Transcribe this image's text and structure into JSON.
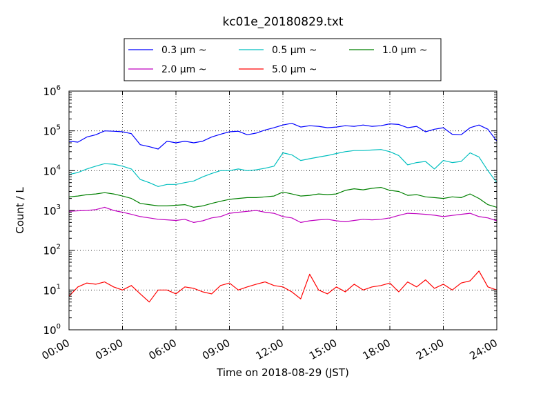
{
  "chart_data": {
    "type": "line",
    "title": "kc01e_20180829.txt",
    "xlabel": "Time on 2018-08-29 (JST)",
    "ylabel": "Count / L",
    "yscale": "log",
    "ylim": [
      1,
      1000000
    ],
    "xlim": [
      "00:00",
      "24:00"
    ],
    "x_ticks": [
      "00:00",
      "03:00",
      "06:00",
      "09:00",
      "12:00",
      "15:00",
      "18:00",
      "21:00",
      "24:00"
    ],
    "y_ticks": [
      {
        "base": "10",
        "exp": "0",
        "value": 1
      },
      {
        "base": "10",
        "exp": "1",
        "value": 10
      },
      {
        "base": "10",
        "exp": "2",
        "value": 100
      },
      {
        "base": "10",
        "exp": "3",
        "value": 1000
      },
      {
        "base": "10",
        "exp": "4",
        "value": 10000
      },
      {
        "base": "10",
        "exp": "5",
        "value": 100000
      },
      {
        "base": "10",
        "exp": "6",
        "value": 1000000
      }
    ],
    "grid": true,
    "legend_position": "top-center (above plot)",
    "x_units": "hours",
    "x": [
      0,
      0.5,
      1,
      1.5,
      2,
      2.5,
      3,
      3.5,
      4,
      4.5,
      5,
      5.5,
      6,
      6.5,
      7,
      7.5,
      8,
      8.5,
      9,
      9.5,
      10,
      10.5,
      11,
      11.5,
      12,
      12.5,
      13,
      13.5,
      14,
      14.5,
      15,
      15.5,
      16,
      16.5,
      17,
      17.5,
      18,
      18.5,
      19,
      19.5,
      20,
      20.5,
      21,
      21.5,
      22,
      22.5,
      23,
      23.5,
      24
    ],
    "series": [
      {
        "name": "0.3",
        "unit": "μm ~",
        "color": "#0000ff",
        "values": [
          55000,
          52000,
          70000,
          80000,
          100000,
          98000,
          95000,
          85000,
          45000,
          40000,
          35000,
          55000,
          50000,
          55000,
          50000,
          55000,
          70000,
          82000,
          95000,
          98000,
          80000,
          88000,
          105000,
          120000,
          140000,
          155000,
          125000,
          135000,
          130000,
          120000,
          125000,
          135000,
          130000,
          140000,
          130000,
          135000,
          150000,
          145000,
          120000,
          130000,
          95000,
          110000,
          120000,
          82000,
          80000,
          120000,
          140000,
          110000,
          55000
        ]
      },
      {
        "name": "0.5",
        "unit": "μm ~",
        "color": "#00bfbf",
        "values": [
          8000,
          9000,
          11000,
          13000,
          15000,
          14500,
          13000,
          11000,
          6000,
          5000,
          4000,
          4500,
          4500,
          5000,
          5500,
          7000,
          8500,
          10000,
          10000,
          11000,
          10000,
          10500,
          11500,
          13000,
          28000,
          25000,
          18000,
          20000,
          22000,
          24000,
          27000,
          30000,
          32000,
          32000,
          33000,
          34000,
          30000,
          24000,
          14000,
          16000,
          17000,
          11000,
          18000,
          16000,
          17000,
          28000,
          22000,
          10000,
          5000
        ]
      },
      {
        "name": "1.0",
        "unit": "μm ~",
        "color": "#008000",
        "values": [
          2200,
          2300,
          2500,
          2600,
          2800,
          2600,
          2300,
          2000,
          1500,
          1400,
          1300,
          1300,
          1350,
          1400,
          1200,
          1300,
          1500,
          1700,
          1900,
          2000,
          2100,
          2100,
          2200,
          2300,
          2900,
          2600,
          2300,
          2400,
          2600,
          2500,
          2600,
          3200,
          3500,
          3300,
          3600,
          3800,
          3200,
          3000,
          2400,
          2500,
          2200,
          2100,
          2000,
          2200,
          2100,
          2600,
          2000,
          1400,
          1200
        ]
      },
      {
        "name": "2.0",
        "unit": "μm ~",
        "color": "#bf00bf",
        "values": [
          950,
          980,
          1000,
          1050,
          1200,
          1000,
          900,
          800,
          700,
          650,
          600,
          580,
          560,
          600,
          500,
          550,
          650,
          700,
          850,
          900,
          950,
          1000,
          900,
          850,
          700,
          650,
          500,
          550,
          580,
          600,
          550,
          520,
          560,
          600,
          580,
          600,
          650,
          750,
          850,
          830,
          800,
          760,
          700,
          750,
          800,
          850,
          700,
          650,
          550
        ]
      },
      {
        "name": "5.0",
        "unit": "μm ~",
        "color": "#ff0000",
        "values": [
          7,
          12,
          15,
          14,
          16,
          12,
          10,
          13,
          8,
          5,
          10,
          10,
          8,
          12,
          11,
          9,
          8,
          13,
          15,
          10,
          12,
          14,
          16,
          13,
          12,
          9,
          6,
          25,
          10,
          8,
          12,
          9,
          14,
          10,
          12,
          13,
          15,
          9,
          16,
          12,
          18,
          11,
          14,
          10,
          15,
          17,
          30,
          12,
          10
        ]
      }
    ]
  }
}
